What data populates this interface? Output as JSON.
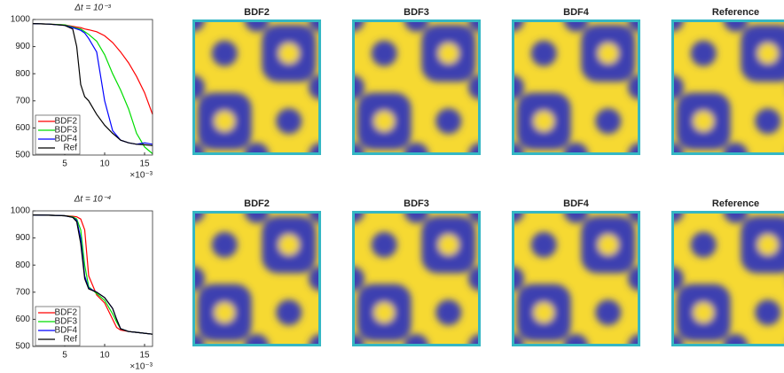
{
  "chart_data": [
    {
      "type": "line",
      "title": "Δt = 10⁻³",
      "x_multiplier": "×10⁻³",
      "x": [
        1,
        3,
        5,
        6,
        6.5,
        7,
        7.5,
        8,
        9,
        10,
        11,
        12,
        13,
        14,
        15,
        16
      ],
      "xlim": [
        1,
        16
      ],
      "xticks": [
        5,
        10,
        15
      ],
      "ylim": [
        500,
        1000
      ],
      "yticks": [
        500,
        600,
        700,
        800,
        900,
        1000
      ],
      "series": [
        {
          "name": "BDF2",
          "color": "#ff0000",
          "values": [
            985,
            983,
            980,
            975,
            972,
            970,
            965,
            962,
            955,
            940,
            915,
            880,
            840,
            790,
            730,
            650
          ]
        },
        {
          "name": "BDF3",
          "color": "#00dd00",
          "values": [
            985,
            983,
            980,
            972,
            968,
            965,
            955,
            945,
            920,
            870,
            800,
            740,
            670,
            580,
            530,
            505
          ]
        },
        {
          "name": "BDF4",
          "color": "#0000ff",
          "values": [
            985,
            983,
            978,
            970,
            965,
            960,
            950,
            930,
            880,
            700,
            590,
            555,
            545,
            540,
            545,
            540
          ]
        },
        {
          "name": "Ref",
          "color": "#000000",
          "values": [
            985,
            983,
            978,
            965,
            900,
            760,
            715,
            700,
            650,
            610,
            580,
            555,
            545,
            540,
            538,
            535
          ]
        }
      ]
    },
    {
      "type": "image",
      "title": "BDF2"
    },
    {
      "type": "image",
      "title": "BDF3"
    },
    {
      "type": "image",
      "title": "BDF4"
    },
    {
      "type": "image",
      "title": "Reference"
    },
    {
      "type": "line",
      "title": "Δt = 10⁻⁴",
      "x_multiplier": "×10⁻³",
      "x": [
        1,
        3,
        5,
        6,
        6.5,
        7,
        7.5,
        8,
        9,
        10,
        11,
        11.5,
        12,
        13,
        14,
        16
      ],
      "xlim": [
        1,
        16
      ],
      "xticks": [
        5,
        10,
        15
      ],
      "ylim": [
        500,
        1000
      ],
      "yticks": [
        500,
        600,
        700,
        800,
        900,
        1000
      ],
      "series": [
        {
          "name": "BDF2",
          "color": "#ff0000",
          "values": [
            985,
            984,
            982,
            980,
            978,
            970,
            930,
            760,
            690,
            660,
            600,
            570,
            560,
            555,
            552,
            545
          ]
        },
        {
          "name": "BDF3",
          "color": "#00dd00",
          "values": [
            985,
            984,
            982,
            978,
            970,
            930,
            800,
            720,
            695,
            670,
            620,
            590,
            565,
            555,
            552,
            545
          ]
        },
        {
          "name": "BDF4",
          "color": "#0000ff",
          "values": [
            985,
            984,
            982,
            976,
            965,
            900,
            760,
            715,
            700,
            680,
            640,
            600,
            565,
            555,
            552,
            545
          ]
        },
        {
          "name": "Ref",
          "color": "#000000",
          "values": [
            985,
            984,
            982,
            976,
            960,
            880,
            750,
            712,
            700,
            680,
            640,
            600,
            565,
            555,
            552,
            545
          ]
        }
      ]
    },
    {
      "type": "image",
      "title": "BDF2"
    },
    {
      "type": "image",
      "title": "BDF3"
    },
    {
      "type": "image",
      "title": "BDF4"
    },
    {
      "type": "image",
      "title": "Reference"
    }
  ]
}
